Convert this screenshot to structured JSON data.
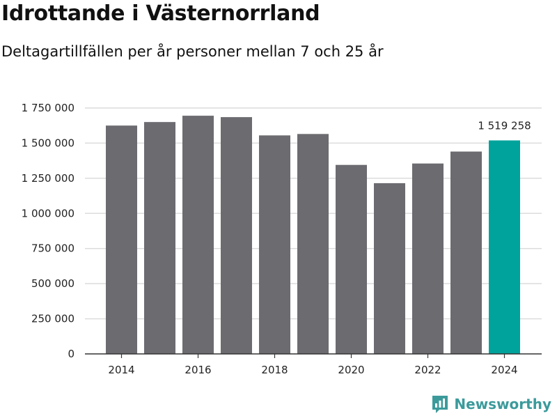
{
  "title": "Idrottande i Västernorrland",
  "subtitle": "Deltagartillfällen per år personer mellan 7 och 25 år",
  "brand": {
    "name": "Newsworthy",
    "icon": "newsworthy-logo-icon"
  },
  "colors": {
    "bar": "#6c6b70",
    "highlight": "#00a39b",
    "grid": "#dcdcdc",
    "axis": "#333333",
    "brand": "#3c9a9b"
  },
  "chart_data": {
    "type": "bar",
    "title": "Idrottande i Västernorrland",
    "subtitle": "Deltagartillfällen per år personer mellan 7 och 25 år",
    "xlabel": "",
    "ylabel": "",
    "categories": [
      "2014",
      "2015",
      "2016",
      "2017",
      "2018",
      "2019",
      "2020",
      "2021",
      "2022",
      "2023",
      "2024"
    ],
    "values": [
      1625000,
      1650000,
      1695000,
      1685000,
      1555000,
      1565000,
      1345000,
      1215000,
      1355000,
      1440000,
      1519258
    ],
    "highlight_index": 10,
    "highlight_label": "1 519 258",
    "ylim": [
      0,
      1750000
    ],
    "yticks": [
      0,
      250000,
      500000,
      750000,
      1000000,
      1250000,
      1500000,
      1750000
    ],
    "ytick_labels": [
      "0",
      "250 000",
      "500 000",
      "750 000",
      "1 000 000",
      "1 250 000",
      "1 500 000",
      "1 750 000"
    ],
    "xticks": [
      "2014",
      "2016",
      "2018",
      "2020",
      "2022",
      "2024"
    ],
    "grid": true
  }
}
